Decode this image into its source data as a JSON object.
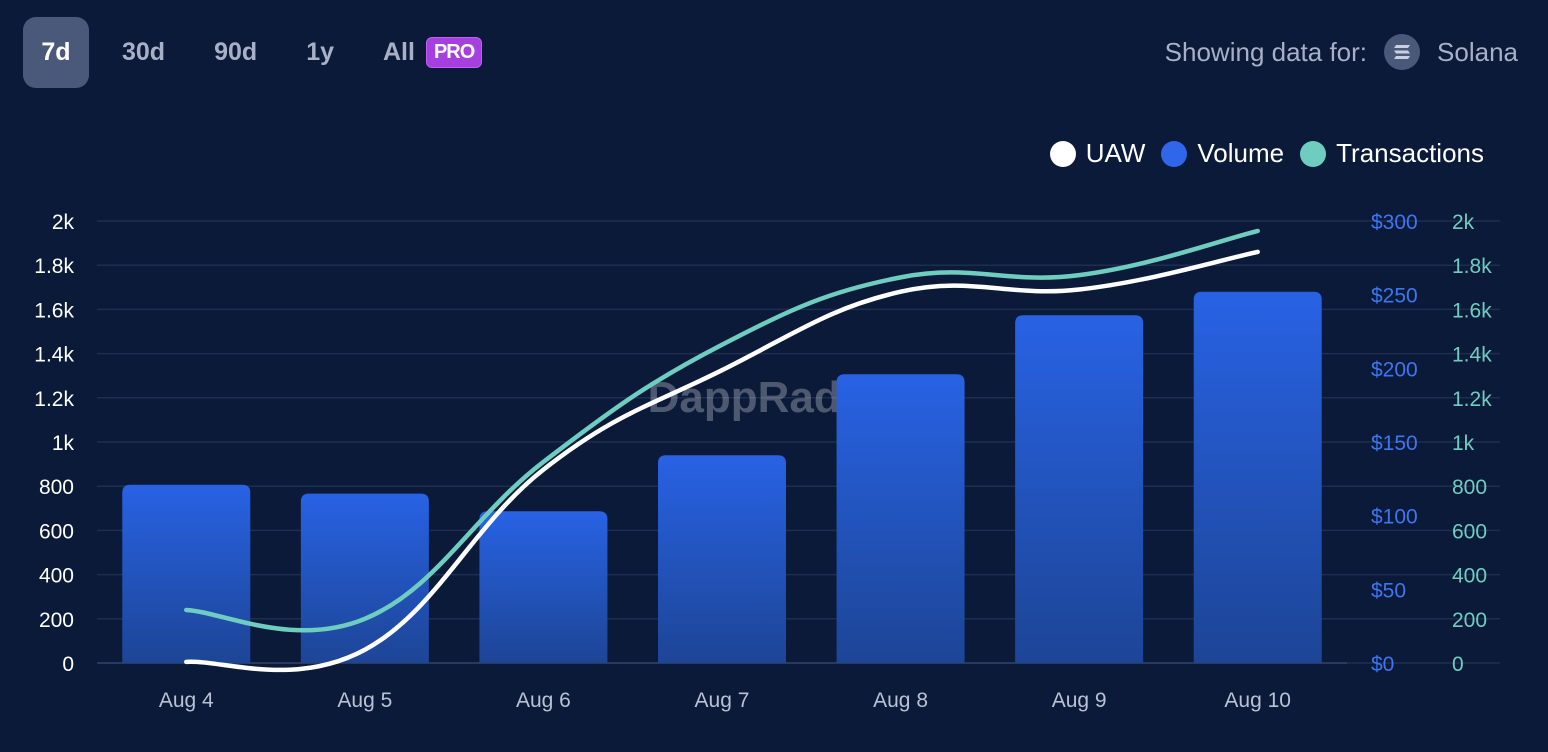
{
  "tabs": [
    {
      "label": "7d",
      "active": true
    },
    {
      "label": "30d"
    },
    {
      "label": "90d"
    },
    {
      "label": "1y"
    },
    {
      "label": "All"
    }
  ],
  "pro_badge": "PRO",
  "showing": {
    "label": "Showing data for:",
    "chain": "Solana",
    "icon": "solana-icon"
  },
  "watermark": "DappRadar",
  "colors": {
    "background": "#0b1a38",
    "uaw": "#ffffff",
    "volume": "#2a62e0",
    "transactions": "#6fcdc0"
  },
  "chart_data": {
    "type": "bar+line",
    "categories": [
      "Aug 4",
      "Aug 5",
      "Aug 6",
      "Aug 7",
      "Aug 8",
      "Aug 9",
      "Aug 10"
    ],
    "legend_position": "top-right",
    "grid": true,
    "axes": {
      "left": {
        "ticks": [
          "0",
          "200",
          "400",
          "600",
          "800",
          "1k",
          "1.2k",
          "1.4k",
          "1.6k",
          "1.8k",
          "2k"
        ],
        "range": [
          0,
          2000
        ]
      },
      "right_volume": {
        "ticks": [
          "$0",
          "$50",
          "$100",
          "$150",
          "$200",
          "$250",
          "$300"
        ],
        "range": [
          0,
          300
        ]
      },
      "right_transactions": {
        "ticks": [
          "0",
          "200",
          "400",
          "600",
          "800",
          "1k",
          "1.2k",
          "1.4k",
          "1.6k",
          "1.8k",
          "2k"
        ],
        "range": [
          0,
          2000
        ]
      }
    },
    "series": [
      {
        "name": "UAW",
        "type": "line",
        "axis": "left",
        "values": [
          5,
          60,
          875,
          1325,
          1680,
          1690,
          1860
        ]
      },
      {
        "name": "Volume",
        "type": "bar",
        "axis": "right_volume",
        "values": [
          121,
          115,
          103,
          141,
          196,
          236,
          252
        ]
      },
      {
        "name": "Transactions",
        "type": "line",
        "axis": "right_transactions",
        "values": [
          240,
          200,
          910,
          1440,
          1745,
          1755,
          1955
        ]
      }
    ]
  }
}
